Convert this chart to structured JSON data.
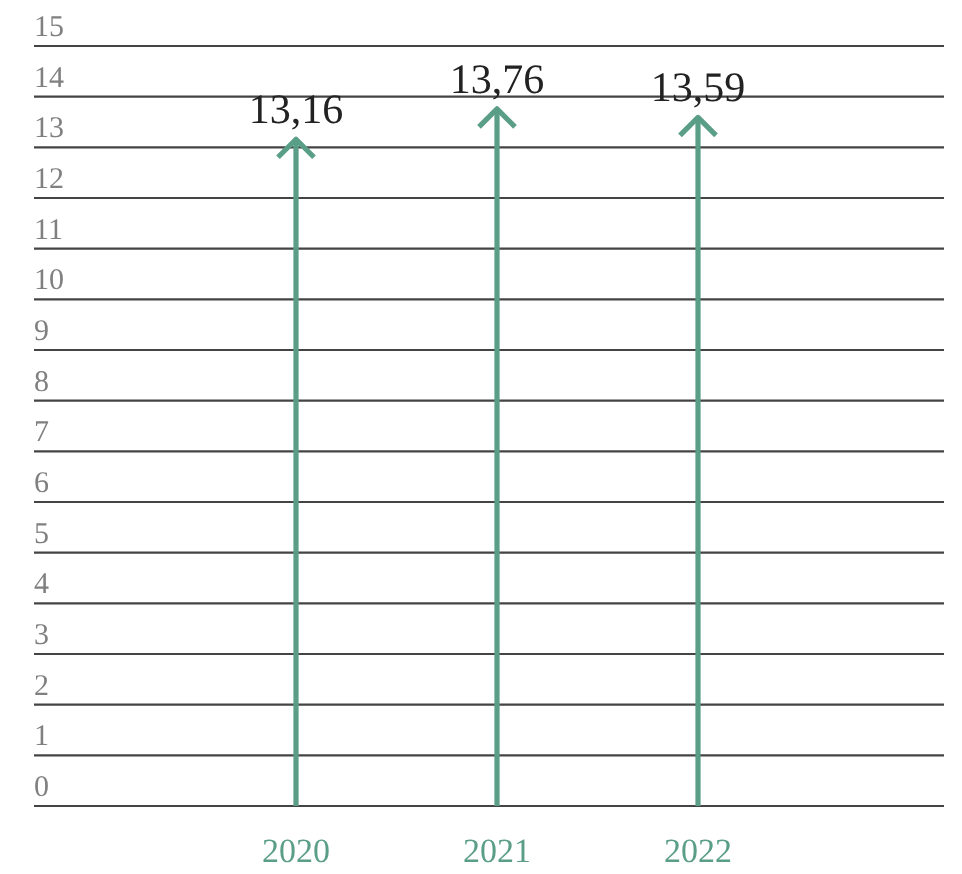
{
  "chart_data": {
    "type": "bar",
    "categories": [
      "2020",
      "2021",
      "2022"
    ],
    "values": [
      13.16,
      13.76,
      13.59
    ],
    "color": "#5a9e88",
    "value_labels": [
      "13,16",
      "13,76",
      "13,59"
    ],
    "ylim": [
      0,
      15
    ],
    "yticks": [
      0,
      1,
      2,
      3,
      4,
      5,
      6,
      7,
      8,
      9,
      10,
      11,
      12,
      13,
      14,
      15
    ],
    "grid": "y"
  }
}
